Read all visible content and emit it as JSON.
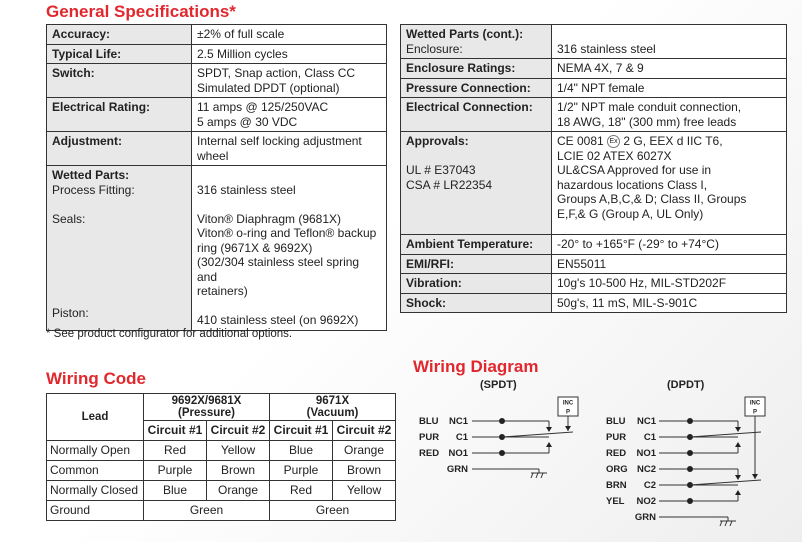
{
  "general": {
    "title": "General Specifications*",
    "note": "* See product configurator for additional options.",
    "left": [
      {
        "label": "Accuracy:",
        "value": [
          "±2% of full scale"
        ]
      },
      {
        "label": "Typical Life:",
        "value": [
          "2.5 Million cycles"
        ]
      },
      {
        "label": "Switch:",
        "value": [
          "SPDT, Snap action, Class CC",
          "Simulated DPDT (optional)"
        ]
      },
      {
        "label": "Electrical Rating:",
        "value": [
          "11 amps @ 125/250VAC",
          "5 amps @ 30 VDC"
        ]
      },
      {
        "label": "Adjustment:",
        "value": [
          "Internal self locking adjustment",
          "wheel"
        ]
      }
    ],
    "wetted": {
      "label": "Wetted Parts:",
      "process_label": "Process Fitting:",
      "process": "316 stainless steel",
      "seals_label": "Seals:",
      "seals": [
        "Viton® Diaphragm (9681X)",
        "Viton® o-ring and Teflon® backup",
        "ring (9671X & 9692X)",
        "(302/304 stainless steel spring and",
        "retainers)"
      ],
      "piston_label": "Piston:",
      "piston": "410 stainless steel (on 9692X)"
    },
    "right": {
      "wetted_cont": {
        "label": "Wetted Parts (cont.):",
        "sub": "Enclosure:",
        "value": "316 stainless steel"
      },
      "rows1": [
        {
          "label": "Enclosure Ratings:",
          "value": [
            "NEMA 4X, 7 & 9"
          ]
        },
        {
          "label": "Pressure Connection:",
          "value": [
            "1/4\" NPT female"
          ]
        },
        {
          "label": "Electrical Connection:",
          "value": [
            "1/2\" NPT male conduit connection,",
            "18 AWG, 18\" (300 mm) free leads"
          ]
        }
      ],
      "approvals": {
        "label": "Approvals:",
        "ul": "UL # E37043",
        "csa": "CSA # LR22354",
        "value_a": "CE 0081",
        "value_b": "2 G, EEX d IIC T6,",
        "value": [
          "LCIE 02 ATEX 6027X",
          "UL&CSA Approved for use in",
          "hazardous locations Class I,",
          "Groups A,B,C,& D; Class II, Groups",
          "E,F,& G (Group A, UL Only)"
        ]
      },
      "rows2": [
        {
          "label": "Ambient Temperature:",
          "value": [
            "-20° to +165°F (-29° to +74°C)"
          ]
        },
        {
          "label": "EMI/RFI:",
          "value": [
            "EN55011"
          ]
        },
        {
          "label": "Vibration:",
          "value": [
            "10g's 10-500 Hz, MIL-STD202F"
          ]
        },
        {
          "label": "Shock:",
          "value": [
            "50g's, 11 mS, MIL-S-901C"
          ]
        }
      ]
    }
  },
  "wiring_code": {
    "title": "Wiring Code",
    "lead": "Lead",
    "groups": [
      [
        "9692X/9681X",
        "(Pressure)"
      ],
      [
        "9671X",
        "(Vacuum)"
      ]
    ],
    "circuits": [
      "Circuit #1",
      "Circuit #2",
      "Circuit #1",
      "Circuit #2"
    ],
    "rows": [
      [
        "Normally Open",
        "Red",
        "Yellow",
        "Blue",
        "Orange"
      ],
      [
        "Common",
        "Purple",
        "Brown",
        "Purple",
        "Brown"
      ],
      [
        "Normally Closed",
        "Blue",
        "Orange",
        "Red",
        "Yellow"
      ]
    ],
    "ground": [
      "Ground",
      "Green",
      "Green"
    ]
  },
  "wiring_diagram": {
    "title": "Wiring Diagram",
    "spdt": "(SPDT)",
    "dpdt": "(DPDT)",
    "inc": "INC",
    "p": "P",
    "spdt_rows": [
      [
        "BLU",
        "NC1"
      ],
      [
        "PUR",
        "C1"
      ],
      [
        "RED",
        "NO1"
      ],
      [
        "",
        "GRN"
      ]
    ],
    "dpdt_rows": [
      [
        "BLU",
        "NC1"
      ],
      [
        "PUR",
        "C1"
      ],
      [
        "RED",
        "NO1"
      ],
      [
        "ORG",
        "NC2"
      ],
      [
        "BRN",
        "C2"
      ],
      [
        "YEL",
        "NO2"
      ],
      [
        "",
        "GRN"
      ]
    ]
  }
}
